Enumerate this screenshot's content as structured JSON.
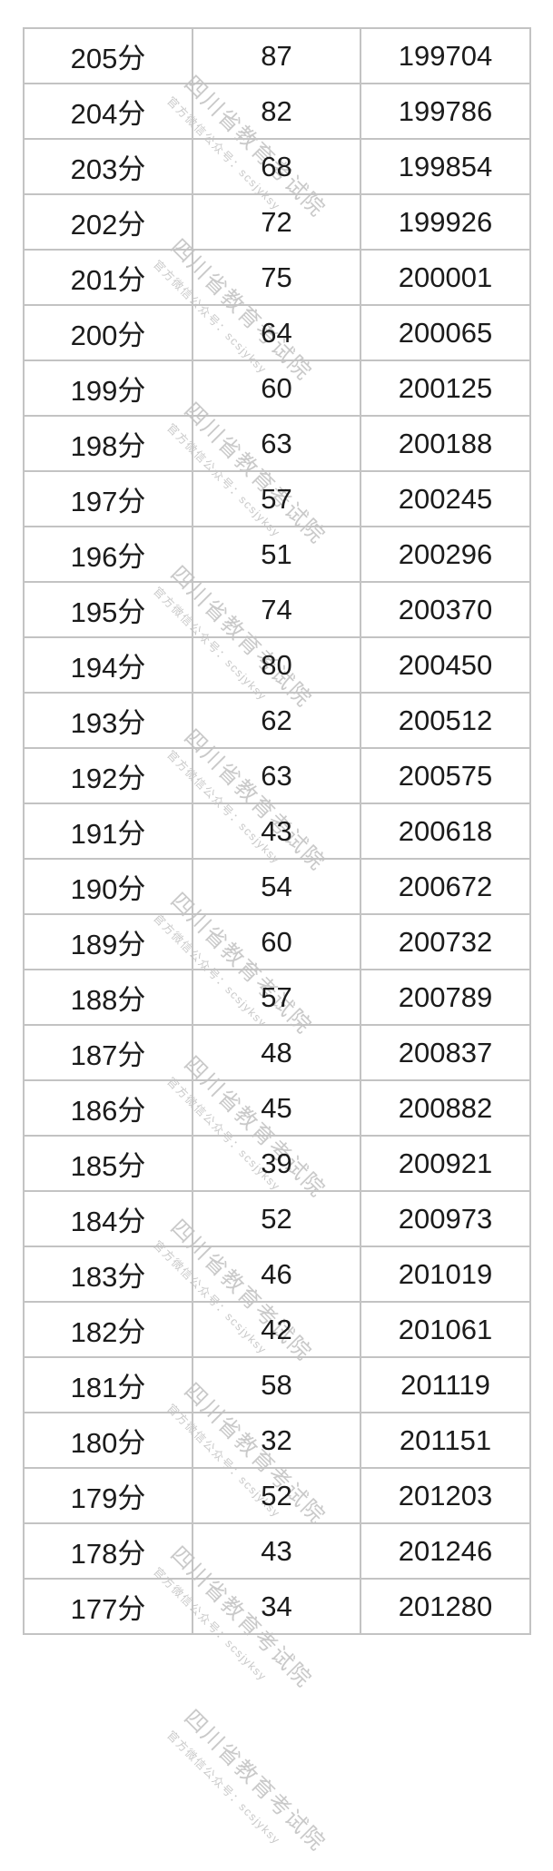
{
  "watermark": {
    "line1": "四川省教育考试院",
    "line2": "官方微信公众号：scsjyksy"
  },
  "colors": {
    "text": "#1b1b1b",
    "border": "#c3c3c3",
    "watermark": "#c7c7c7",
    "background": "#ffffff"
  },
  "chart_data": {
    "type": "table",
    "note": "score segment table: score / count at score / cumulative count",
    "rows": [
      {
        "score": "205分",
        "count": "87",
        "cumulative": "199704"
      },
      {
        "score": "204分",
        "count": "82",
        "cumulative": "199786"
      },
      {
        "score": "203分",
        "count": "68",
        "cumulative": "199854"
      },
      {
        "score": "202分",
        "count": "72",
        "cumulative": "199926"
      },
      {
        "score": "201分",
        "count": "75",
        "cumulative": "200001"
      },
      {
        "score": "200分",
        "count": "64",
        "cumulative": "200065"
      },
      {
        "score": "199分",
        "count": "60",
        "cumulative": "200125"
      },
      {
        "score": "198分",
        "count": "63",
        "cumulative": "200188"
      },
      {
        "score": "197分",
        "count": "57",
        "cumulative": "200245"
      },
      {
        "score": "196分",
        "count": "51",
        "cumulative": "200296"
      },
      {
        "score": "195分",
        "count": "74",
        "cumulative": "200370"
      },
      {
        "score": "194分",
        "count": "80",
        "cumulative": "200450"
      },
      {
        "score": "193分",
        "count": "62",
        "cumulative": "200512"
      },
      {
        "score": "192分",
        "count": "63",
        "cumulative": "200575"
      },
      {
        "score": "191分",
        "count": "43",
        "cumulative": "200618"
      },
      {
        "score": "190分",
        "count": "54",
        "cumulative": "200672"
      },
      {
        "score": "189分",
        "count": "60",
        "cumulative": "200732"
      },
      {
        "score": "188分",
        "count": "57",
        "cumulative": "200789"
      },
      {
        "score": "187分",
        "count": "48",
        "cumulative": "200837"
      },
      {
        "score": "186分",
        "count": "45",
        "cumulative": "200882"
      },
      {
        "score": "185分",
        "count": "39",
        "cumulative": "200921"
      },
      {
        "score": "184分",
        "count": "52",
        "cumulative": "200973"
      },
      {
        "score": "183分",
        "count": "46",
        "cumulative": "201019"
      },
      {
        "score": "182分",
        "count": "42",
        "cumulative": "201061"
      },
      {
        "score": "181分",
        "count": "58",
        "cumulative": "201119"
      },
      {
        "score": "180分",
        "count": "32",
        "cumulative": "201151"
      },
      {
        "score": "179分",
        "count": "52",
        "cumulative": "201203"
      },
      {
        "score": "178分",
        "count": "43",
        "cumulative": "201246"
      },
      {
        "score": "177分",
        "count": "34",
        "cumulative": "201280"
      }
    ]
  }
}
